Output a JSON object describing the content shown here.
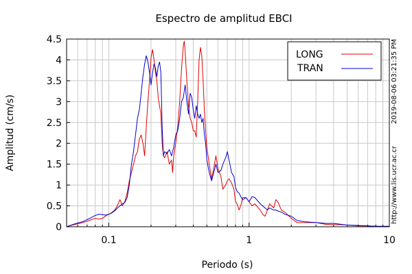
{
  "chart_data": {
    "type": "line",
    "title": "Espectro de amplitud EBCI",
    "xlabel": "Periodo (s)",
    "ylabel": "Amplitud (cm/s)",
    "xscale": "log",
    "xlim": [
      0.05,
      10
    ],
    "ylim": [
      0,
      4.5
    ],
    "x_ticks": [
      0.1,
      1,
      10
    ],
    "x_tick_labels": [
      "0.1",
      "1",
      "10"
    ],
    "y_ticks": [
      0,
      0.5,
      1,
      1.5,
      2,
      2.5,
      3,
      3.5,
      4,
      4.5
    ],
    "y_tick_labels": [
      "0",
      "0.5",
      "1",
      "1.5",
      "2",
      "2.5",
      "3",
      "3.5",
      "4",
      "4.5"
    ],
    "grid": true,
    "legend": "top-right",
    "timestamp": "2019-08-06 03:21:35 PM",
    "source": "http://www.lis.ucr.ac.cr",
    "series": [
      {
        "name": "LONG",
        "color": "#dd0000",
        "points": [
          [
            0.05,
            0.0
          ],
          [
            0.055,
            0.04
          ],
          [
            0.06,
            0.07
          ],
          [
            0.065,
            0.1
          ],
          [
            0.07,
            0.13
          ],
          [
            0.075,
            0.17
          ],
          [
            0.08,
            0.2
          ],
          [
            0.085,
            0.18
          ],
          [
            0.09,
            0.2
          ],
          [
            0.095,
            0.26
          ],
          [
            0.1,
            0.3
          ],
          [
            0.105,
            0.34
          ],
          [
            0.11,
            0.4
          ],
          [
            0.115,
            0.5
          ],
          [
            0.12,
            0.65
          ],
          [
            0.125,
            0.5
          ],
          [
            0.13,
            0.6
          ],
          [
            0.135,
            0.8
          ],
          [
            0.14,
            1.1
          ],
          [
            0.145,
            1.3
          ],
          [
            0.15,
            1.5
          ],
          [
            0.155,
            1.7
          ],
          [
            0.16,
            1.8
          ],
          [
            0.165,
            2.1
          ],
          [
            0.17,
            2.2
          ],
          [
            0.175,
            2.0
          ],
          [
            0.18,
            1.7
          ],
          [
            0.185,
            2.4
          ],
          [
            0.19,
            3.0
          ],
          [
            0.195,
            3.5
          ],
          [
            0.2,
            4.05
          ],
          [
            0.205,
            4.25
          ],
          [
            0.21,
            4.0
          ],
          [
            0.215,
            3.7
          ],
          [
            0.22,
            3.5
          ],
          [
            0.225,
            3.1
          ],
          [
            0.23,
            2.9
          ],
          [
            0.235,
            2.7
          ],
          [
            0.24,
            2.0
          ],
          [
            0.245,
            1.7
          ],
          [
            0.25,
            1.65
          ],
          [
            0.26,
            1.8
          ],
          [
            0.27,
            1.5
          ],
          [
            0.28,
            1.6
          ],
          [
            0.285,
            1.3
          ],
          [
            0.29,
            1.7
          ],
          [
            0.3,
            2.0
          ],
          [
            0.31,
            2.4
          ],
          [
            0.32,
            3.0
          ],
          [
            0.33,
            3.8
          ],
          [
            0.34,
            4.35
          ],
          [
            0.345,
            4.45
          ],
          [
            0.35,
            4.2
          ],
          [
            0.36,
            3.5
          ],
          [
            0.37,
            2.9
          ],
          [
            0.38,
            2.6
          ],
          [
            0.39,
            2.5
          ],
          [
            0.4,
            2.3
          ],
          [
            0.41,
            2.3
          ],
          [
            0.42,
            2.15
          ],
          [
            0.43,
            3.0
          ],
          [
            0.44,
            4.0
          ],
          [
            0.45,
            4.3
          ],
          [
            0.46,
            4.1
          ],
          [
            0.47,
            3.5
          ],
          [
            0.48,
            2.8
          ],
          [
            0.49,
            2.3
          ],
          [
            0.5,
            1.9
          ],
          [
            0.52,
            1.5
          ],
          [
            0.54,
            1.15
          ],
          [
            0.56,
            1.4
          ],
          [
            0.58,
            1.7
          ],
          [
            0.6,
            1.4
          ],
          [
            0.63,
            1.2
          ],
          [
            0.65,
            0.9
          ],
          [
            0.68,
            1.0
          ],
          [
            0.7,
            1.1
          ],
          [
            0.72,
            1.15
          ],
          [
            0.75,
            1.05
          ],
          [
            0.78,
            0.9
          ],
          [
            0.8,
            0.6
          ],
          [
            0.82,
            0.55
          ],
          [
            0.85,
            0.4
          ],
          [
            0.88,
            0.55
          ],
          [
            0.9,
            0.7
          ],
          [
            0.95,
            0.7
          ],
          [
            1.0,
            0.6
          ],
          [
            1.05,
            0.5
          ],
          [
            1.1,
            0.55
          ],
          [
            1.2,
            0.4
          ],
          [
            1.25,
            0.3
          ],
          [
            1.3,
            0.25
          ],
          [
            1.35,
            0.4
          ],
          [
            1.4,
            0.55
          ],
          [
            1.5,
            0.45
          ],
          [
            1.55,
            0.65
          ],
          [
            1.6,
            0.6
          ],
          [
            1.7,
            0.4
          ],
          [
            1.8,
            0.35
          ],
          [
            2.0,
            0.2
          ],
          [
            2.2,
            0.1
          ],
          [
            2.5,
            0.1
          ],
          [
            3.0,
            0.1
          ],
          [
            3.5,
            0.06
          ],
          [
            4.0,
            0.05
          ],
          [
            4.5,
            0.05
          ],
          [
            5.0,
            0.04
          ],
          [
            6.0,
            0.02
          ],
          [
            7.0,
            0.02
          ],
          [
            8.0,
            0.01
          ],
          [
            10.0,
            0.01
          ]
        ]
      },
      {
        "name": "TRAN",
        "color": "#0000cc",
        "points": [
          [
            0.05,
            0.0
          ],
          [
            0.055,
            0.05
          ],
          [
            0.06,
            0.09
          ],
          [
            0.065,
            0.12
          ],
          [
            0.07,
            0.17
          ],
          [
            0.075,
            0.22
          ],
          [
            0.08,
            0.27
          ],
          [
            0.085,
            0.3
          ],
          [
            0.09,
            0.29
          ],
          [
            0.095,
            0.28
          ],
          [
            0.1,
            0.3
          ],
          [
            0.105,
            0.33
          ],
          [
            0.11,
            0.38
          ],
          [
            0.115,
            0.45
          ],
          [
            0.12,
            0.5
          ],
          [
            0.125,
            0.55
          ],
          [
            0.13,
            0.58
          ],
          [
            0.135,
            0.7
          ],
          [
            0.14,
            1.0
          ],
          [
            0.145,
            1.5
          ],
          [
            0.15,
            1.8
          ],
          [
            0.155,
            2.2
          ],
          [
            0.16,
            2.6
          ],
          [
            0.165,
            2.8
          ],
          [
            0.17,
            3.2
          ],
          [
            0.175,
            3.6
          ],
          [
            0.18,
            3.9
          ],
          [
            0.185,
            4.1
          ],
          [
            0.19,
            3.95
          ],
          [
            0.195,
            3.7
          ],
          [
            0.2,
            3.4
          ],
          [
            0.205,
            3.7
          ],
          [
            0.21,
            3.9
          ],
          [
            0.215,
            3.8
          ],
          [
            0.22,
            3.6
          ],
          [
            0.225,
            3.85
          ],
          [
            0.23,
            3.95
          ],
          [
            0.235,
            3.7
          ],
          [
            0.24,
            2.4
          ],
          [
            0.245,
            1.7
          ],
          [
            0.25,
            1.8
          ],
          [
            0.26,
            1.75
          ],
          [
            0.27,
            1.85
          ],
          [
            0.28,
            1.7
          ],
          [
            0.29,
            1.9
          ],
          [
            0.3,
            2.2
          ],
          [
            0.31,
            2.3
          ],
          [
            0.32,
            2.6
          ],
          [
            0.33,
            3.0
          ],
          [
            0.34,
            3.1
          ],
          [
            0.35,
            3.4
          ],
          [
            0.36,
            3.0
          ],
          [
            0.37,
            2.7
          ],
          [
            0.38,
            3.2
          ],
          [
            0.39,
            3.1
          ],
          [
            0.4,
            2.8
          ],
          [
            0.41,
            2.6
          ],
          [
            0.42,
            2.9
          ],
          [
            0.43,
            2.7
          ],
          [
            0.44,
            2.6
          ],
          [
            0.45,
            2.7
          ],
          [
            0.46,
            2.5
          ],
          [
            0.47,
            2.6
          ],
          [
            0.48,
            2.2
          ],
          [
            0.49,
            2.0
          ],
          [
            0.5,
            1.6
          ],
          [
            0.52,
            1.3
          ],
          [
            0.54,
            1.1
          ],
          [
            0.56,
            1.3
          ],
          [
            0.58,
            1.5
          ],
          [
            0.6,
            1.3
          ],
          [
            0.63,
            1.35
          ],
          [
            0.65,
            1.5
          ],
          [
            0.68,
            1.65
          ],
          [
            0.7,
            1.8
          ],
          [
            0.72,
            1.6
          ],
          [
            0.75,
            1.3
          ],
          [
            0.78,
            1.2
          ],
          [
            0.8,
            0.95
          ],
          [
            0.82,
            0.85
          ],
          [
            0.85,
            0.8
          ],
          [
            0.88,
            0.7
          ],
          [
            0.9,
            0.65
          ],
          [
            0.95,
            0.7
          ],
          [
            1.0,
            0.6
          ],
          [
            1.05,
            0.72
          ],
          [
            1.1,
            0.7
          ],
          [
            1.2,
            0.55
          ],
          [
            1.25,
            0.5
          ],
          [
            1.3,
            0.45
          ],
          [
            1.35,
            0.4
          ],
          [
            1.4,
            0.45
          ],
          [
            1.5,
            0.4
          ],
          [
            1.55,
            0.4
          ],
          [
            1.6,
            0.38
          ],
          [
            1.7,
            0.35
          ],
          [
            1.8,
            0.3
          ],
          [
            2.0,
            0.25
          ],
          [
            2.2,
            0.15
          ],
          [
            2.5,
            0.12
          ],
          [
            3.0,
            0.1
          ],
          [
            3.5,
            0.08
          ],
          [
            4.0,
            0.08
          ],
          [
            4.5,
            0.06
          ],
          [
            5.0,
            0.04
          ],
          [
            6.0,
            0.03
          ],
          [
            7.0,
            0.02
          ],
          [
            8.0,
            0.01
          ],
          [
            10.0,
            0.01
          ]
        ]
      }
    ]
  }
}
